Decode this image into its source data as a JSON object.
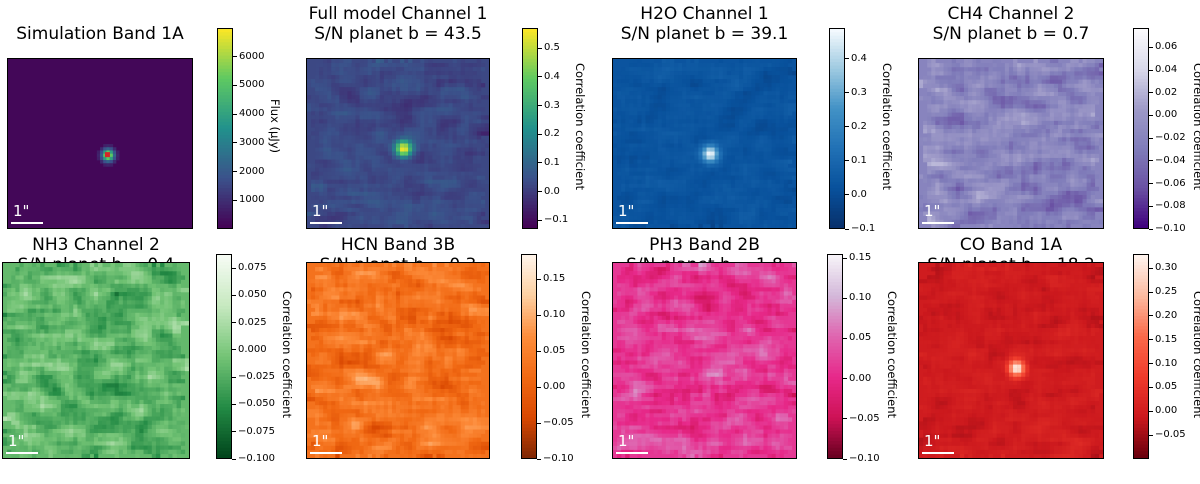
{
  "chart_data": [
    {
      "type": "heatmap",
      "title": [
        "Simulation Band 1A",
        ""
      ],
      "colormap": "viridis",
      "clim": [
        0,
        7000
      ],
      "colorbar_label": "Flux (μJy)",
      "colorbar_ticks": [
        "1000",
        "2000",
        "3000",
        "4000",
        "5000",
        "6000"
      ],
      "colorbar_tick_values": [
        1000,
        2000,
        3000,
        4000,
        5000,
        6000
      ],
      "scale_label": "1\"",
      "peak_marker": "red"
    },
    {
      "type": "heatmap",
      "title": [
        "Full model Channel 1",
        "S/N planet b = 43.5"
      ],
      "colormap": "viridis",
      "clim": [
        -0.13,
        0.57
      ],
      "colorbar_label": "Correlation coefficient",
      "colorbar_ticks": [
        "−0.1",
        "0.0",
        "0.1",
        "0.2",
        "0.3",
        "0.4",
        "0.5"
      ],
      "colorbar_tick_values": [
        -0.1,
        0.0,
        0.1,
        0.2,
        0.3,
        0.4,
        0.5
      ],
      "scale_label": "1\""
    },
    {
      "type": "heatmap",
      "title": [
        "H2O Channel 1",
        "S/N planet b = 39.1"
      ],
      "colormap": "Blues_r",
      "clim": [
        -0.1,
        0.49
      ],
      "colorbar_label": "Correlation coefficient",
      "colorbar_ticks": [
        "−0.1",
        "0.0",
        "0.1",
        "0.2",
        "0.3",
        "0.4"
      ],
      "colorbar_tick_values": [
        -0.1,
        0.0,
        0.1,
        0.2,
        0.3,
        0.4
      ],
      "scale_label": "1\""
    },
    {
      "type": "heatmap",
      "title": [
        "CH4 Channel 2",
        "S/N planet b = 0.7"
      ],
      "colormap": "Purples_r",
      "clim": [
        -0.1,
        0.077
      ],
      "colorbar_label": "Correlation coefficient",
      "colorbar_ticks": [
        "−0.10",
        "−0.08",
        "−0.06",
        "−0.04",
        "−0.02",
        "0.00",
        "0.02",
        "0.04",
        "0.06"
      ],
      "colorbar_tick_values": [
        -0.1,
        -0.08,
        -0.06,
        -0.04,
        -0.02,
        0.0,
        0.02,
        0.04,
        0.06
      ],
      "scale_label": "1\""
    },
    {
      "type": "heatmap",
      "title": [
        "NH3 Channel 2",
        "S/N planet b = 0.4"
      ],
      "colormap": "Greens_r",
      "clim": [
        -0.1,
        0.088
      ],
      "colorbar_label": "Correlation coefficient",
      "colorbar_ticks": [
        "−0.100",
        "−0.075",
        "−0.050",
        "−0.025",
        "0.000",
        "0.025",
        "0.050",
        "0.075"
      ],
      "colorbar_tick_values": [
        -0.1,
        -0.075,
        -0.05,
        -0.025,
        0.0,
        0.025,
        0.05,
        0.075
      ],
      "scale_label": "1\""
    },
    {
      "type": "heatmap",
      "title": [
        "HCN Band 3B",
        "S/N planet b = 0.3"
      ],
      "colormap": "Oranges_r",
      "clim": [
        -0.1,
        0.185
      ],
      "colorbar_label": "Correlation coefficient",
      "colorbar_ticks": [
        "−0.10",
        "−0.05",
        "0.00",
        "0.05",
        "0.10",
        "0.15"
      ],
      "colorbar_tick_values": [
        -0.1,
        -0.05,
        0.0,
        0.05,
        0.1,
        0.15
      ],
      "scale_label": "1\""
    },
    {
      "type": "heatmap",
      "title": [
        "PH3 Band 2B",
        "S/N planet b = 1.8"
      ],
      "colormap": "PuRd_r",
      "clim": [
        -0.1,
        0.155
      ],
      "colorbar_label": "Correlation coefficient",
      "colorbar_ticks": [
        "−0.10",
        "−0.05",
        "0.00",
        "0.05",
        "0.10",
        "0.15"
      ],
      "colorbar_tick_values": [
        -0.1,
        -0.05,
        0.0,
        0.05,
        0.1,
        0.15
      ],
      "scale_label": "1\""
    },
    {
      "type": "heatmap",
      "title": [
        "CO Band 1A",
        "S/N planet b = 18.2"
      ],
      "colormap": "Reds_r",
      "clim": [
        -0.1,
        0.33
      ],
      "colorbar_label": "Correlation coefficient",
      "colorbar_ticks": [
        "−0.05",
        "0.00",
        "0.05",
        "0.10",
        "0.15",
        "0.20",
        "0.25",
        "0.30"
      ],
      "colorbar_tick_values": [
        -0.05,
        0.0,
        0.05,
        0.1,
        0.15,
        0.2,
        0.25,
        0.3
      ],
      "scale_label": "1\""
    }
  ]
}
